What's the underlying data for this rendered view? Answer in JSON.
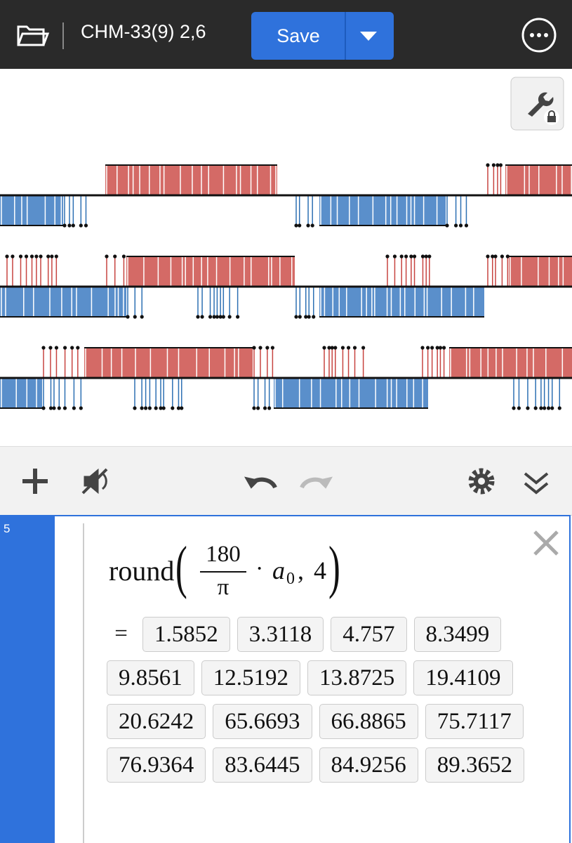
{
  "header": {
    "title": "CHM-33(9) 2,6",
    "save": "Save"
  },
  "expression": {
    "index": "5",
    "function": "round",
    "open": "(",
    "numerator": "180",
    "denominator": "π",
    "operator": "·",
    "variable": "a",
    "subscript": "0",
    "separator": ",",
    "argument": "4",
    "close": ")",
    "equals": "=",
    "results": [
      1.5852,
      3.3118,
      4.757,
      8.3499,
      9.8561,
      12.5192,
      13.8725,
      19.4109,
      20.6242,
      65.6693,
      66.8865,
      75.7117,
      76.9364,
      83.6445,
      84.9256,
      89.3652
    ]
  }
}
